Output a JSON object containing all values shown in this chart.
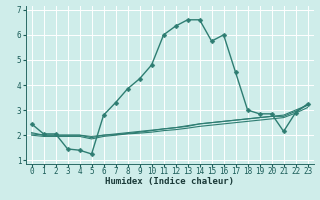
{
  "xlabel": "Humidex (Indice chaleur)",
  "bg_color": "#cfedea",
  "grid_color": "#ffffff",
  "line_color": "#2e7d72",
  "xlim": [
    -0.5,
    23.5
  ],
  "ylim": [
    0.85,
    7.15
  ],
  "xticks": [
    0,
    1,
    2,
    3,
    4,
    5,
    6,
    7,
    8,
    9,
    10,
    11,
    12,
    13,
    14,
    15,
    16,
    17,
    18,
    19,
    20,
    21,
    22,
    23
  ],
  "yticks": [
    1,
    2,
    3,
    4,
    5,
    6,
    7
  ],
  "lines": [
    {
      "x": [
        0,
        1,
        2,
        3,
        4,
        5,
        6,
        7,
        8,
        9,
        10,
        11,
        12,
        13,
        14,
        15,
        16,
        17,
        18,
        19,
        20,
        21,
        22,
        23
      ],
      "y": [
        2.45,
        2.05,
        2.05,
        1.45,
        1.4,
        1.25,
        2.8,
        3.3,
        3.85,
        4.25,
        4.8,
        6.0,
        6.35,
        6.6,
        6.6,
        5.75,
        6.0,
        4.5,
        3.0,
        2.85,
        2.85,
        2.15,
        2.9,
        3.25
      ],
      "marker": "D",
      "ms": 2.5,
      "lw": 1.0
    },
    {
      "x": [
        0,
        1,
        2,
        3,
        4,
        5,
        6,
        7,
        8,
        9,
        10,
        11,
        12,
        13,
        14,
        15,
        16,
        17,
        18,
        19,
        20,
        21,
        22,
        23
      ],
      "y": [
        2.1,
        2.0,
        2.0,
        2.0,
        2.0,
        1.95,
        2.0,
        2.05,
        2.1,
        2.15,
        2.2,
        2.25,
        2.3,
        2.35,
        2.45,
        2.5,
        2.55,
        2.6,
        2.65,
        2.7,
        2.75,
        2.75,
        2.95,
        3.2
      ],
      "marker": null,
      "ms": 0,
      "lw": 0.8
    },
    {
      "x": [
        0,
        1,
        2,
        3,
        4,
        5,
        6,
        7,
        8,
        9,
        10,
        11,
        12,
        13,
        14,
        15,
        16,
        17,
        18,
        19,
        20,
        21,
        22,
        23
      ],
      "y": [
        2.05,
        2.0,
        2.0,
        2.0,
        2.0,
        1.9,
        2.0,
        2.02,
        2.07,
        2.12,
        2.18,
        2.25,
        2.3,
        2.38,
        2.45,
        2.5,
        2.55,
        2.6,
        2.65,
        2.7,
        2.75,
        2.8,
        3.0,
        3.2
      ],
      "marker": null,
      "ms": 0,
      "lw": 0.8
    },
    {
      "x": [
        0,
        1,
        2,
        3,
        4,
        5,
        6,
        7,
        8,
        9,
        10,
        11,
        12,
        13,
        14,
        15,
        16,
        17,
        18,
        19,
        20,
        21,
        22,
        23
      ],
      "y": [
        2.0,
        1.95,
        1.95,
        1.95,
        1.95,
        1.85,
        1.95,
        2.0,
        2.05,
        2.08,
        2.12,
        2.18,
        2.22,
        2.28,
        2.35,
        2.4,
        2.45,
        2.5,
        2.55,
        2.6,
        2.65,
        2.7,
        2.88,
        3.1
      ],
      "marker": null,
      "ms": 0,
      "lw": 0.8
    }
  ]
}
